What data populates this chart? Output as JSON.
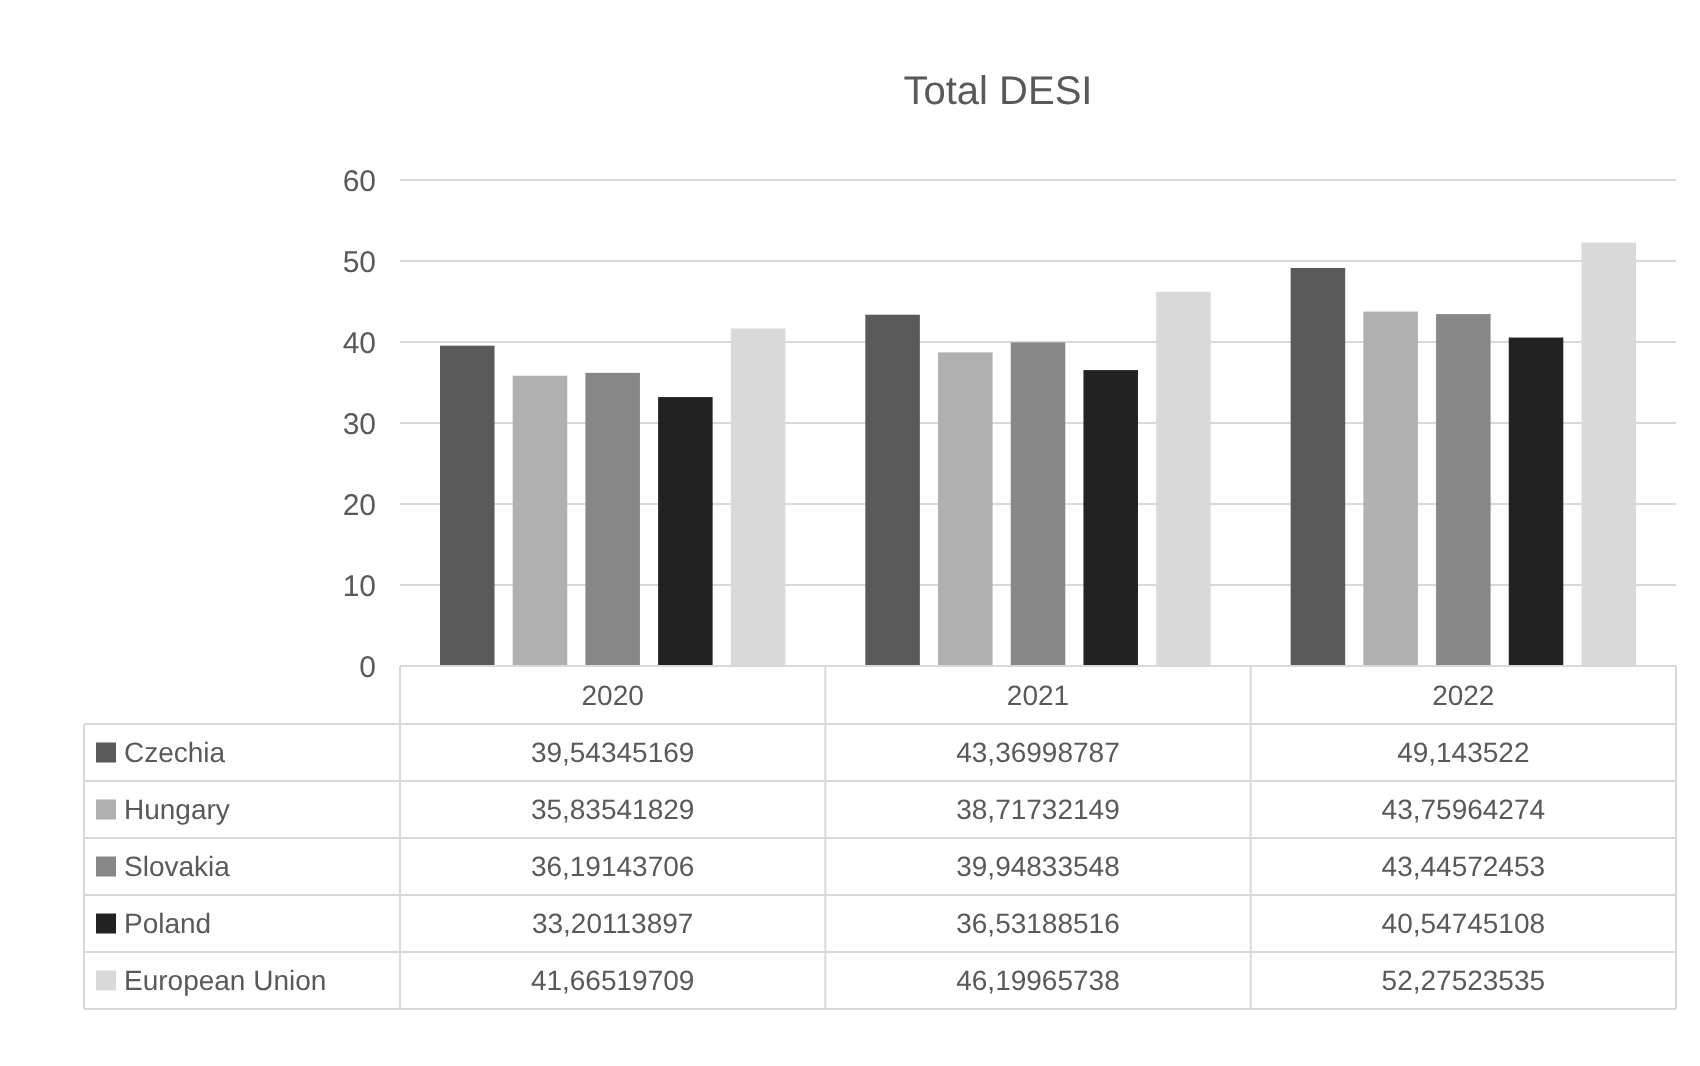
{
  "chart_data": {
    "type": "bar",
    "title": "Total DESI",
    "categories": [
      "2020",
      "2021",
      "2022"
    ],
    "series": [
      {
        "name": "Czechia",
        "color": "#5a5a5a",
        "values": [
          39.54345169,
          43.36998787,
          49.143522
        ],
        "value_labels": [
          "39,54345169",
          "43,36998787",
          "49,143522"
        ]
      },
      {
        "name": "Hungary",
        "color": "#b0b0b0",
        "values": [
          35.83541829,
          38.71732149,
          43.75964274
        ],
        "value_labels": [
          "35,83541829",
          "38,71732149",
          "43,75964274"
        ]
      },
      {
        "name": "Slovakia",
        "color": "#878787",
        "values": [
          36.19143706,
          39.94833548,
          43.44572453
        ],
        "value_labels": [
          "36,19143706",
          "39,94833548",
          "43,44572453"
        ]
      },
      {
        "name": "Poland",
        "color": "#222222",
        "values": [
          33.20113897,
          36.53188516,
          40.54745108
        ],
        "value_labels": [
          "33,20113897",
          "36,53188516",
          "40,54745108"
        ]
      },
      {
        "name": "European Union",
        "color": "#d9d9d9",
        "values": [
          41.66519709,
          46.19965738,
          52.27523535
        ],
        "value_labels": [
          "41,66519709",
          "46,19965738",
          "52,27523535"
        ]
      }
    ],
    "ylim": [
      0,
      60
    ],
    "yticks": [
      0,
      10,
      20,
      30,
      40,
      50,
      60
    ],
    "grid": "y",
    "legend": "bottom"
  }
}
